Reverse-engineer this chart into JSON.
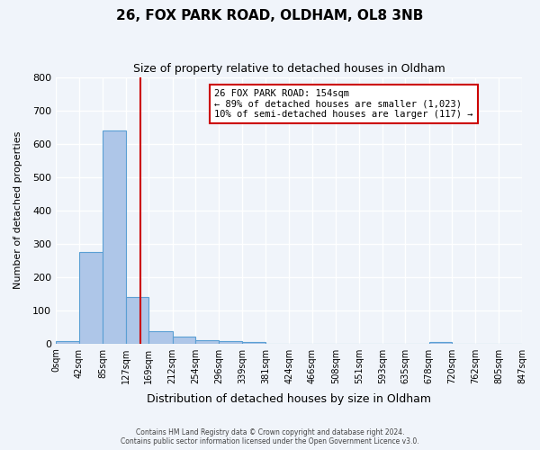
{
  "title": "26, FOX PARK ROAD, OLDHAM, OL8 3NB",
  "subtitle": "Size of property relative to detached houses in Oldham",
  "xlabel": "Distribution of detached houses by size in Oldham",
  "ylabel": "Number of detached properties",
  "bin_labels": [
    "0sqm",
    "42sqm",
    "85sqm",
    "127sqm",
    "169sqm",
    "212sqm",
    "254sqm",
    "296sqm",
    "339sqm",
    "381sqm",
    "424sqm",
    "466sqm",
    "508sqm",
    "551sqm",
    "593sqm",
    "635sqm",
    "678sqm",
    "720sqm",
    "762sqm",
    "805sqm",
    "847sqm"
  ],
  "bin_edges": [
    0,
    42,
    85,
    127,
    169,
    212,
    254,
    296,
    339,
    381,
    424,
    466,
    508,
    551,
    593,
    635,
    678,
    720,
    762,
    805,
    847
  ],
  "bar_values": [
    8,
    275,
    640,
    140,
    38,
    20,
    10,
    7,
    5,
    0,
    0,
    0,
    0,
    0,
    0,
    0,
    5,
    0,
    0,
    0
  ],
  "bar_color": "#aec6e8",
  "bar_edgecolor": "#5a9fd4",
  "vline_x": 154,
  "vline_color": "#cc0000",
  "ylim": [
    0,
    800
  ],
  "yticks": [
    0,
    100,
    200,
    300,
    400,
    500,
    600,
    700,
    800
  ],
  "annotation_text": "26 FOX PARK ROAD: 154sqm\n← 89% of detached houses are smaller (1,023)\n10% of semi-detached houses are larger (117) →",
  "annotation_box_color": "#ffffff",
  "annotation_box_edgecolor": "#cc0000",
  "footer_line1": "Contains HM Land Registry data © Crown copyright and database right 2024.",
  "footer_line2": "Contains public sector information licensed under the Open Government Licence v3.0.",
  "background_color": "#f0f4fa",
  "grid_color": "#ffffff"
}
